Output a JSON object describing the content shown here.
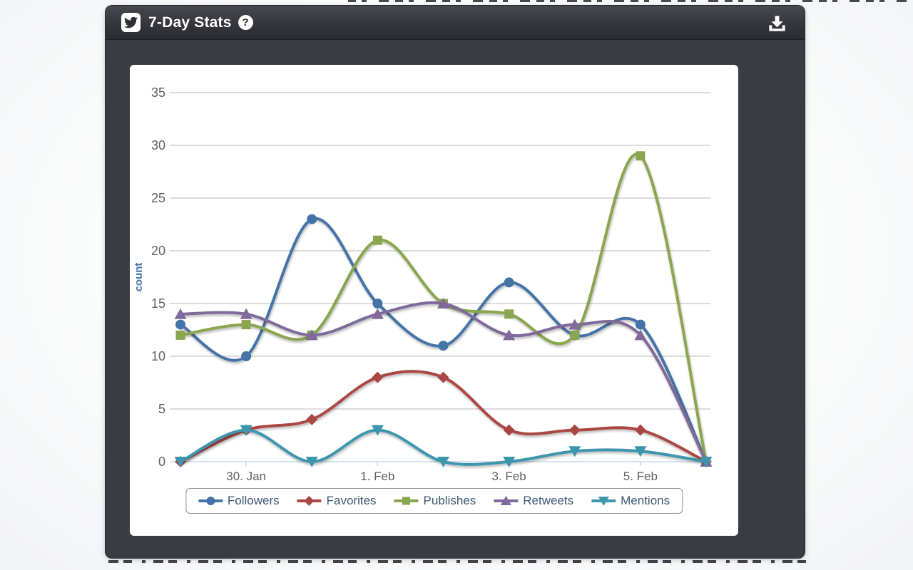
{
  "window": {
    "title": "7-Day Stats",
    "titlebar": {
      "help_icon_symbol": "?",
      "twitter_icon": "twitter-bird",
      "download_icon": "download-tray-arrow"
    }
  },
  "chart_data": {
    "type": "line",
    "subtype": "spline",
    "title": "",
    "xlabel": "",
    "ylabel": "count",
    "ylim": [
      0,
      35
    ],
    "yticks": [
      0,
      5,
      10,
      15,
      20,
      25,
      30,
      35
    ],
    "grid": true,
    "legend_position": "bottom",
    "n_points": 9,
    "xticks": [
      {
        "index": 1,
        "label": "30. Jan"
      },
      {
        "index": 3,
        "label": "1. Feb"
      },
      {
        "index": 5,
        "label": "3. Feb"
      },
      {
        "index": 7,
        "label": "5. Feb"
      }
    ],
    "series": [
      {
        "name": "Followers",
        "color": "#4572A7",
        "marker": "circle",
        "values": [
          13,
          10,
          23,
          15,
          11,
          17,
          12,
          13,
          0
        ]
      },
      {
        "name": "Favorites",
        "color": "#AA4643",
        "marker": "diamond",
        "values": [
          0,
          3,
          4,
          8,
          8,
          3,
          3,
          3,
          0
        ]
      },
      {
        "name": "Publishes",
        "color": "#89A54E",
        "marker": "square",
        "values": [
          12,
          13,
          12,
          21,
          15,
          14,
          12,
          29,
          0
        ]
      },
      {
        "name": "Retweets",
        "color": "#80699B",
        "marker": "triangle",
        "values": [
          14,
          14,
          12,
          14,
          15,
          12,
          13,
          12,
          0
        ]
      },
      {
        "name": "Mentions",
        "color": "#3D96AE",
        "marker": "triangle-down",
        "values": [
          0,
          3,
          0,
          3,
          0,
          0,
          1,
          1,
          0
        ]
      }
    ],
    "style_colors": {
      "axis_line": "#C0D0E0",
      "gridline": "#C6C6C6",
      "tick_label": "#606060",
      "axis_title": "#4572A7",
      "legend_text": "#3E576F"
    }
  }
}
